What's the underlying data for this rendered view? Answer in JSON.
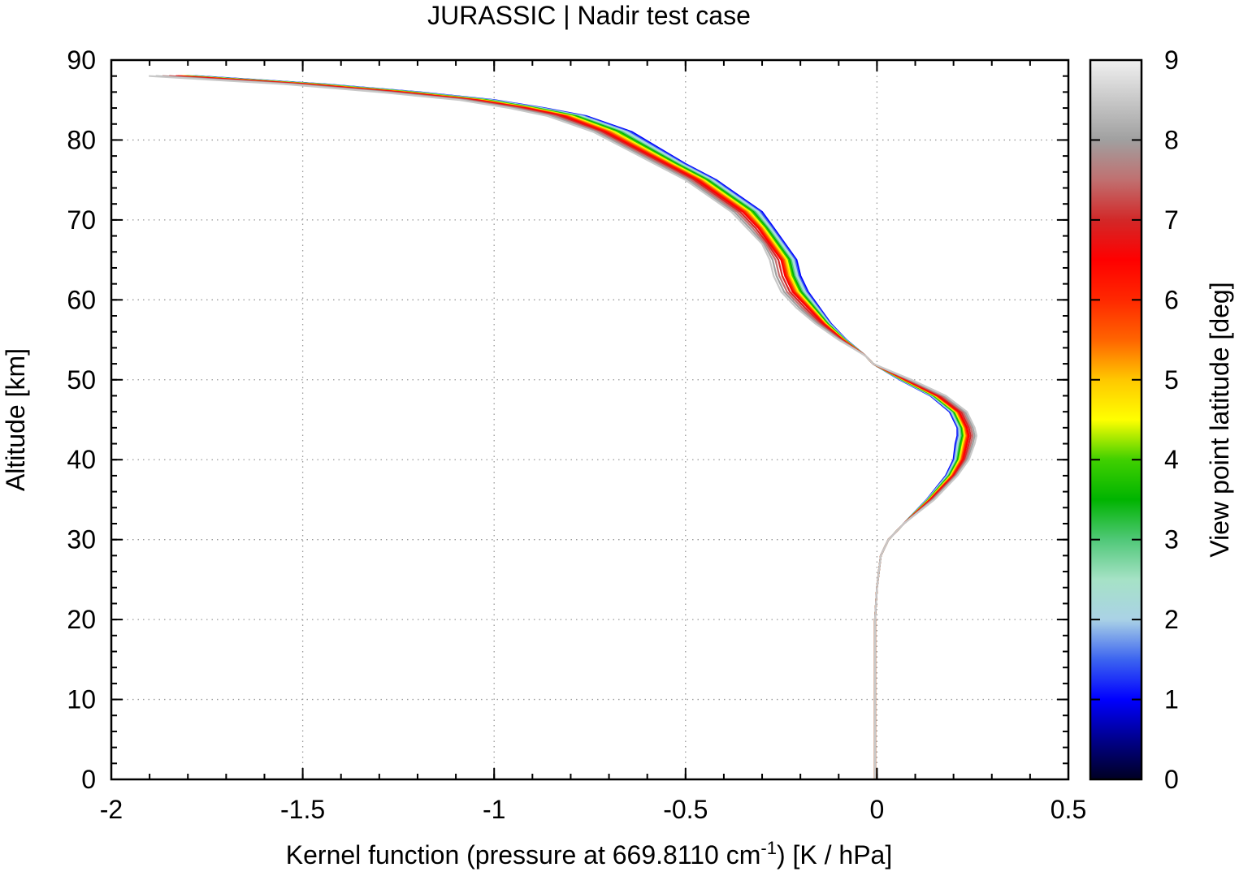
{
  "chart_data": {
    "type": "line",
    "title": "JURASSIC | Nadir test case",
    "xlabel_main": "Kernel function (pressure at 669.8110 cm",
    "xlabel_sup": "-1",
    "xlabel_end": ") [K / hPa]",
    "ylabel": "Altitude [km]",
    "xlim": [
      -2,
      0.5
    ],
    "ylim": [
      0,
      90
    ],
    "xticks": [
      "-2",
      "-1.5",
      "-1",
      "-0.5",
      "0",
      "0.5"
    ],
    "yticks": [
      "0",
      "10",
      "20",
      "30",
      "40",
      "50",
      "60",
      "70",
      "80",
      "90"
    ],
    "grid": true,
    "colorbar": {
      "label": "View point latitude [deg]",
      "range": [
        0,
        9
      ],
      "ticks": [
        "0",
        "1",
        "2",
        "3",
        "4",
        "5",
        "6",
        "7",
        "8",
        "9"
      ],
      "stops": [
        {
          "v": 0,
          "color": "#000022"
        },
        {
          "v": 0.5,
          "color": "#00008c"
        },
        {
          "v": 1,
          "color": "#0000ff"
        },
        {
          "v": 1.5,
          "color": "#3c64f0"
        },
        {
          "v": 2,
          "color": "#aad2e6"
        },
        {
          "v": 2.5,
          "color": "#a6e2c6"
        },
        {
          "v": 3,
          "color": "#50c878"
        },
        {
          "v": 3.5,
          "color": "#00b400"
        },
        {
          "v": 4,
          "color": "#40d000"
        },
        {
          "v": 4.5,
          "color": "#ffff00"
        },
        {
          "v": 5,
          "color": "#ffc800"
        },
        {
          "v": 5.5,
          "color": "#ff6400"
        },
        {
          "v": 6,
          "color": "#ff2800"
        },
        {
          "v": 6.5,
          "color": "#ff0000"
        },
        {
          "v": 7,
          "color": "#d22828"
        },
        {
          "v": 7.5,
          "color": "#c07070"
        },
        {
          "v": 8,
          "color": "#a0a0a0"
        },
        {
          "v": 8.5,
          "color": "#c8c8c8"
        },
        {
          "v": 9,
          "color": "#f0f0f0"
        }
      ]
    },
    "series_latitudes": [
      1.0,
      1.5,
      2.0,
      2.5,
      3.0,
      3.5,
      4.0,
      4.5,
      5.0,
      5.5,
      6.0,
      6.5,
      7.0,
      7.5,
      8.0,
      8.5
    ],
    "profile": {
      "y": [
        0,
        10,
        17,
        20,
        24,
        28,
        30,
        32,
        35,
        38,
        40,
        42,
        43,
        44,
        46,
        48,
        50,
        52,
        53,
        55,
        57,
        59,
        61,
        63,
        65,
        67,
        69,
        71,
        73,
        75,
        77,
        79,
        81,
        83,
        84,
        85,
        86,
        87,
        88
      ],
      "x_blue": [
        -0.005,
        -0.005,
        -0.005,
        -0.005,
        0.0,
        0.01,
        0.03,
        0.07,
        0.13,
        0.18,
        0.2,
        0.205,
        0.21,
        0.21,
        0.19,
        0.14,
        0.06,
        -0.01,
        -0.03,
        -0.08,
        -0.12,
        -0.15,
        -0.18,
        -0.2,
        -0.21,
        -0.24,
        -0.27,
        -0.3,
        -0.36,
        -0.42,
        -0.5,
        -0.57,
        -0.64,
        -0.76,
        -0.87,
        -1.0,
        -1.2,
        -1.45,
        -1.78
      ],
      "x_red": [
        -0.005,
        -0.005,
        -0.005,
        -0.005,
        0.0,
        0.01,
        0.03,
        0.07,
        0.14,
        0.2,
        0.225,
        0.235,
        0.24,
        0.235,
        0.215,
        0.16,
        0.075,
        -0.01,
        -0.03,
        -0.09,
        -0.14,
        -0.18,
        -0.22,
        -0.24,
        -0.25,
        -0.28,
        -0.31,
        -0.35,
        -0.41,
        -0.47,
        -0.55,
        -0.63,
        -0.71,
        -0.82,
        -0.92,
        -1.05,
        -1.25,
        -1.5,
        -1.83
      ],
      "x_grey": [
        -0.005,
        -0.005,
        -0.005,
        -0.005,
        0.0,
        0.01,
        0.03,
        0.07,
        0.15,
        0.21,
        0.24,
        0.255,
        0.26,
        0.255,
        0.235,
        0.18,
        0.09,
        -0.01,
        -0.03,
        -0.1,
        -0.16,
        -0.21,
        -0.25,
        -0.27,
        -0.28,
        -0.3,
        -0.34,
        -0.38,
        -0.44,
        -0.5,
        -0.58,
        -0.66,
        -0.74,
        -0.86,
        -0.96,
        -1.09,
        -1.3,
        -1.55,
        -1.9
      ]
    }
  }
}
